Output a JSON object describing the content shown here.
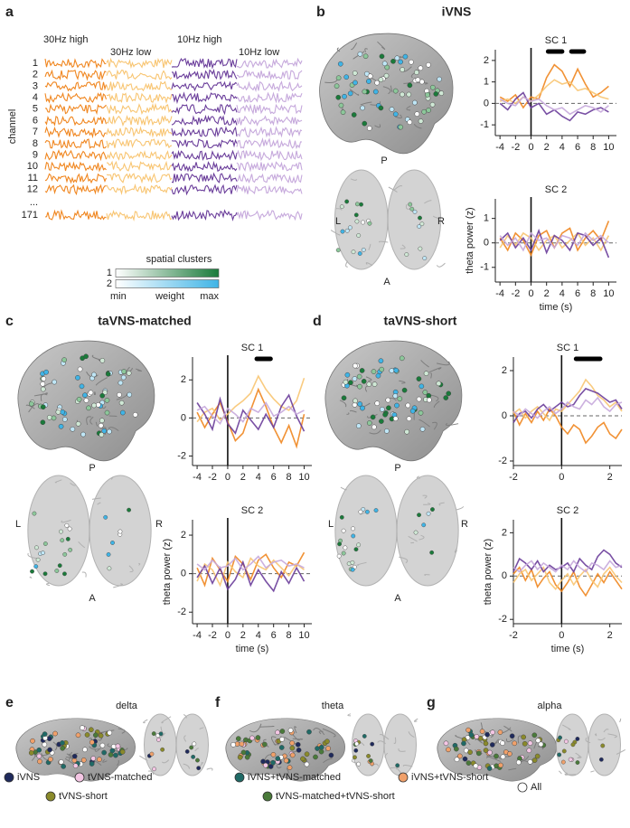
{
  "panel_a": {
    "letter": "a",
    "conditions": [
      {
        "label": "30Hz high",
        "color": "#f0861f"
      },
      {
        "label": "30Hz low",
        "color": "#f8c572"
      },
      {
        "label": "10Hz high",
        "color": "#6a3d9a"
      },
      {
        "label": "10Hz low",
        "color": "#c6a9dc"
      }
    ],
    "channel_axis_label": "channel",
    "channels": [
      "1",
      "2",
      "3",
      "4",
      "5",
      "6",
      "7",
      "8",
      "9",
      "10",
      "11",
      "12"
    ],
    "ellipsis": "...",
    "last_channel": "171"
  },
  "colorbar": {
    "title": "spatial clusters",
    "rows": [
      {
        "label": "1",
        "color": "#1a7a3a"
      },
      {
        "label": "2",
        "color": "#3fb4e6"
      }
    ],
    "min": "min",
    "mid": "weight",
    "max": "max"
  },
  "panels": [
    {
      "letter": "b",
      "title": "iVNS",
      "top": "P",
      "left": "L",
      "right": "R",
      "bottom": "A"
    },
    {
      "letter": "c",
      "title": "taVNS-matched",
      "top": "P",
      "left": "L",
      "right": "R",
      "bottom": "A"
    },
    {
      "letter": "d",
      "title": "taVNS-short",
      "top": "P",
      "left": "L",
      "right": "R",
      "bottom": "A"
    },
    {
      "letter": "e",
      "title": "delta"
    },
    {
      "letter": "f",
      "title": "theta"
    },
    {
      "letter": "g",
      "title": "alpha"
    }
  ],
  "legend": [
    {
      "label": "iVNS",
      "color": "#1f2a5c"
    },
    {
      "label": "tVNS-matched",
      "color": "#f4c6e4"
    },
    {
      "label": "iVNS+tVNS-matched",
      "color": "#1f6a66"
    },
    {
      "label": "iVNS+tVNS-short",
      "color": "#f0a06a"
    },
    {
      "label": "tVNS-short",
      "color": "#8a8a2a"
    },
    {
      "label": "tVNS-matched+tVNS-short",
      "color": "#4a7a3a"
    },
    {
      "label": "All",
      "color": "#ffffff"
    }
  ],
  "chart_data": [
    {
      "type": "line",
      "title": "SC 1",
      "title_color": "#1a7a3a",
      "x": [
        -4,
        -3,
        -2,
        -1,
        0,
        1,
        2,
        3,
        4,
        5,
        6,
        7,
        8,
        9,
        10
      ],
      "xlim": [
        -4.6,
        11
      ],
      "xticks": [
        -4,
        -2,
        0,
        2,
        4,
        6,
        8,
        10
      ],
      "ylim": [
        -1.5,
        2.5
      ],
      "yticks": [
        -1,
        0,
        1,
        2
      ],
      "significance": [
        [
          2.2,
          4
        ],
        [
          5.2,
          6.8
        ]
      ],
      "series": [
        {
          "color": "#f0861f",
          "values": [
            0.3,
            0.1,
            0.4,
            -0.2,
            0.3,
            0.2,
            1.2,
            1.8,
            1.5,
            0.8,
            1.6,
            0.9,
            0.3,
            0.5,
            0.8
          ]
        },
        {
          "color": "#f8c572",
          "values": [
            0.1,
            0.2,
            0,
            0.3,
            0.1,
            0.4,
            0.8,
            1.1,
            0.9,
            1,
            0.6,
            0.7,
            0.5,
            0.3,
            0.2
          ]
        },
        {
          "color": "#6a3d9a",
          "values": [
            0,
            -0.3,
            0.2,
            0.5,
            -0.2,
            0,
            -0.5,
            -0.3,
            -0.6,
            -0.8,
            -0.4,
            -0.5,
            -0.3,
            -0.2,
            -0.4
          ]
        },
        {
          "color": "#c6a9dc",
          "values": [
            0.2,
            0,
            -0.1,
            0.3,
            0.1,
            0.2,
            -0.1,
            -0.3,
            -0.2,
            -0.5,
            -0.3,
            -0.1,
            -0.2,
            -0.4,
            -0.1
          ]
        }
      ]
    },
    {
      "type": "line",
      "title": "SC 2",
      "title_color": "#3fb4e6",
      "ylabel": "theta power (z)",
      "xlabel": "time (s)",
      "x": [
        -4,
        -3,
        -2,
        -1,
        0,
        1,
        2,
        3,
        4,
        5,
        6,
        7,
        8,
        9,
        10
      ],
      "xlim": [
        -4.6,
        11
      ],
      "xticks": [
        -4,
        -2,
        0,
        2,
        4,
        6,
        8,
        10
      ],
      "ylim": [
        -1.6,
        1.8
      ],
      "yticks": [
        -1,
        0,
        1
      ],
      "series": [
        {
          "color": "#f0861f",
          "values": [
            0.2,
            -0.3,
            0.4,
            0.1,
            -0.5,
            0.3,
            0.5,
            -0.2,
            0.4,
            0.6,
            -0.3,
            0.2,
            0.5,
            0.1,
            0.9
          ]
        },
        {
          "color": "#f8c572",
          "values": [
            -0.2,
            0.3,
            -0.1,
            0.4,
            0.2,
            -0.3,
            0.1,
            0.3,
            -0.2,
            0.1,
            0.4,
            -0.1,
            0.2,
            -0.3,
            0.3
          ]
        },
        {
          "color": "#6a3d9a",
          "values": [
            0.1,
            0.4,
            -0.2,
            0.2,
            -0.3,
            0.5,
            -0.4,
            0.3,
            0.1,
            -0.3,
            0.4,
            0.3,
            -0.1,
            0.2,
            -0.6
          ]
        },
        {
          "color": "#c6a9dc",
          "values": [
            0.3,
            -0.1,
            0.2,
            -0.3,
            0.4,
            0.1,
            0.2,
            -0.2,
            0.3,
            0.2,
            -0.1,
            0.4,
            0.1,
            0.3,
            0
          ]
        }
      ]
    },
    {
      "type": "line",
      "title": "SC 1",
      "title_color": "#1a7a3a",
      "x": [
        -4,
        -3,
        -2,
        -1,
        0,
        1,
        2,
        3,
        4,
        5,
        6,
        7,
        8,
        9,
        10
      ],
      "xlim": [
        -4.6,
        11
      ],
      "xticks": [
        -4,
        -2,
        0,
        2,
        4,
        6,
        8,
        10
      ],
      "ylim": [
        -2.5,
        3.2
      ],
      "yticks": [
        -2,
        0,
        2
      ],
      "significance": [
        [
          3.8,
          5.6
        ]
      ],
      "series": [
        {
          "color": "#f0861f",
          "values": [
            0.3,
            -0.5,
            0.2,
            0.8,
            -0.2,
            -1.2,
            -0.8,
            0.4,
            1.5,
            0.6,
            -0.5,
            -1.3,
            -0.4,
            -1.5,
            0.2
          ]
        },
        {
          "color": "#f8c572",
          "values": [
            -0.2,
            0.3,
            0.5,
            -0.1,
            0.2,
            0.6,
            0.9,
            1.3,
            2.2,
            1.5,
            1,
            0.6,
            0.4,
            0.9,
            2.1
          ]
        },
        {
          "color": "#6a3d9a",
          "values": [
            0.8,
            0.2,
            -0.6,
            1,
            -0.3,
            -0.8,
            0.4,
            -0.1,
            -0.6,
            0.2,
            -0.5,
            0.6,
            1.2,
            0.1,
            -0.7
          ]
        },
        {
          "color": "#c6a9dc",
          "values": [
            0.4,
            0.6,
            0.1,
            -0.3,
            0.5,
            0.2,
            -0.2,
            0.5,
            0.3,
            0.8,
            0.1,
            0.3,
            0.6,
            0.2,
            0.4
          ]
        }
      ]
    },
    {
      "type": "line",
      "title": "SC 2",
      "title_color": "#3fb4e6",
      "ylabel": "theta power (z)",
      "xlabel": "time (s)",
      "x": [
        -4,
        -3,
        -2,
        -1,
        0,
        1,
        2,
        3,
        4,
        5,
        6,
        7,
        8,
        9,
        10
      ],
      "xlim": [
        -4.6,
        11
      ],
      "xticks": [
        -4,
        -2,
        0,
        2,
        4,
        6,
        8,
        10
      ],
      "ylim": [
        -2.6,
        2.8
      ],
      "yticks": [
        -2,
        0,
        2
      ],
      "series": [
        {
          "color": "#f0861f",
          "values": [
            0.3,
            -0.6,
            0.8,
            0.2,
            -0.4,
            0.9,
            0.5,
            -0.3,
            0.7,
            1,
            0.3,
            -0.2,
            0.6,
            0.4,
            1.1
          ]
        },
        {
          "color": "#f8c572",
          "values": [
            -0.4,
            0.5,
            0.2,
            -0.6,
            0.6,
            0.1,
            -0.2,
            0.8,
            0.4,
            0.2,
            0.7,
            0.3,
            -0.1,
            0.5,
            0.2
          ]
        },
        {
          "color": "#6a3d9a",
          "values": [
            -0.2,
            0.4,
            -0.5,
            0.3,
            -0.8,
            -0.3,
            0.6,
            -0.6,
            0.2,
            -0.4,
            -0.9,
            0.1,
            -0.5,
            0.3,
            -0.4
          ]
        },
        {
          "color": "#c6a9dc",
          "values": [
            0.5,
            0.2,
            0.7,
            0.3,
            0.4,
            0.8,
            0.2,
            0.5,
            0.9,
            0.3,
            0.6,
            0.7,
            0.4,
            0.5,
            0.3
          ]
        }
      ]
    },
    {
      "type": "line",
      "title": "SC 1",
      "title_color": "#1a7a3a",
      "x": [
        -2,
        -1.75,
        -1.5,
        -1.25,
        -1,
        -0.75,
        -0.5,
        -0.25,
        0,
        0.25,
        0.5,
        0.75,
        1,
        1.25,
        1.5,
        1.75,
        2,
        2.25,
        2.5
      ],
      "xlim": [
        -2,
        2.5
      ],
      "xticks": [
        -2,
        0,
        2
      ],
      "ylim": [
        -2.2,
        2.6
      ],
      "yticks": [
        -2,
        0,
        2
      ],
      "significance": [
        [
          0.6,
          1.6
        ]
      ],
      "series": [
        {
          "color": "#f0861f",
          "values": [
            0.2,
            -0.4,
            0.1,
            -0.3,
            0.2,
            -0.2,
            0.3,
            0,
            -0.5,
            -0.8,
            -0.4,
            -0.6,
            -1.2,
            -0.9,
            -0.5,
            -0.3,
            -0.8,
            -1,
            -0.6
          ]
        },
        {
          "color": "#f8c572",
          "values": [
            0.1,
            0.3,
            -0.1,
            0.2,
            0.4,
            0.1,
            -0.2,
            0.3,
            0.2,
            0.5,
            0.8,
            1.1,
            1.6,
            1.3,
            0.9,
            0.7,
            0.4,
            0.6,
            0.2
          ]
        },
        {
          "color": "#6a3d9a",
          "values": [
            -0.3,
            0.1,
            0.2,
            -0.1,
            0.3,
            0.5,
            0.2,
            0.4,
            0.6,
            0.4,
            0.5,
            0.9,
            1.2,
            1.1,
            1,
            0.8,
            0.6,
            0.7,
            0.3
          ]
        },
        {
          "color": "#c6a9dc",
          "values": [
            0.2,
            0,
            0.3,
            0.1,
            -0.1,
            0.2,
            0.4,
            0.1,
            0.3,
            0.6,
            0.4,
            0.3,
            0.7,
            0.5,
            0.8,
            0.4,
            0.2,
            0.5,
            0.6
          ]
        }
      ]
    },
    {
      "type": "line",
      "title": "SC 2",
      "title_color": "#3fb4e6",
      "ylabel": "theta power (z)",
      "xlabel": "time (s)",
      "x": [
        -2,
        -1.75,
        -1.5,
        -1.25,
        -1,
        -0.75,
        -0.5,
        -0.25,
        0,
        0.25,
        0.5,
        0.75,
        1,
        1.25,
        1.5,
        1.75,
        2,
        2.25,
        2.5
      ],
      "xlim": [
        -2,
        2.5
      ],
      "xticks": [
        -2,
        0,
        2
      ],
      "ylim": [
        -2.2,
        2.6
      ],
      "yticks": [
        -2,
        0,
        2
      ],
      "series": [
        {
          "color": "#f0861f",
          "values": [
            0.1,
            0.4,
            -0.2,
            0.3,
            -0.5,
            -0.1,
            0.2,
            -0.4,
            -0.7,
            -0.3,
            0.2,
            -0.5,
            -0.9,
            -0.4,
            0.1,
            -0.3,
            0.2,
            -0.2,
            -0.6
          ]
        },
        {
          "color": "#f8c572",
          "values": [
            -0.3,
            0.1,
            0.3,
            -0.2,
            0.1,
            0.4,
            -0.3,
            -0.6,
            -0.2,
            0.1,
            -0.4,
            0,
            0.3,
            -0.2,
            -0.5,
            0.1,
            0.4,
            0,
            -0.3
          ]
        },
        {
          "color": "#6a3d9a",
          "values": [
            0.2,
            0.8,
            0.6,
            0.3,
            0.7,
            0.2,
            0.5,
            0.3,
            0.4,
            0.6,
            0.2,
            0.8,
            0.5,
            0.3,
            0.9,
            1.2,
            1,
            0.6,
            0.4
          ]
        },
        {
          "color": "#c6a9dc",
          "values": [
            0.4,
            0.2,
            0.5,
            0.7,
            0.3,
            0.6,
            0.4,
            0.2,
            0.5,
            0.3,
            0.7,
            0.4,
            0.2,
            0.6,
            0.5,
            0.3,
            0.7,
            0.4,
            0.5
          ]
        }
      ]
    }
  ]
}
